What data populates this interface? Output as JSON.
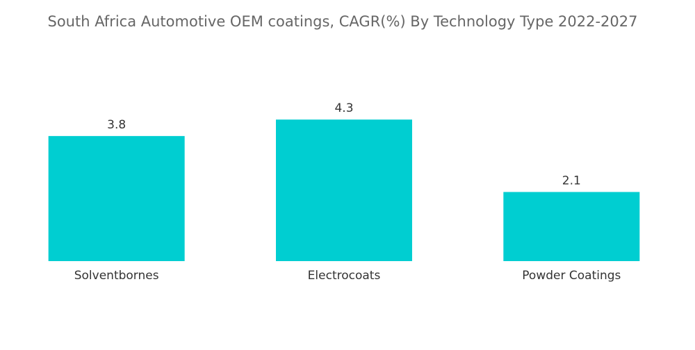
{
  "chart_data": {
    "type": "bar",
    "title": "South Africa Automotive OEM coatings, CAGR(%) By Technology Type 2022-2027",
    "categories": [
      "Solventbornes",
      "Electrocoats",
      "Powder Coatings"
    ],
    "values": [
      3.8,
      4.3,
      2.1
    ],
    "color": "#00ced1"
  }
}
